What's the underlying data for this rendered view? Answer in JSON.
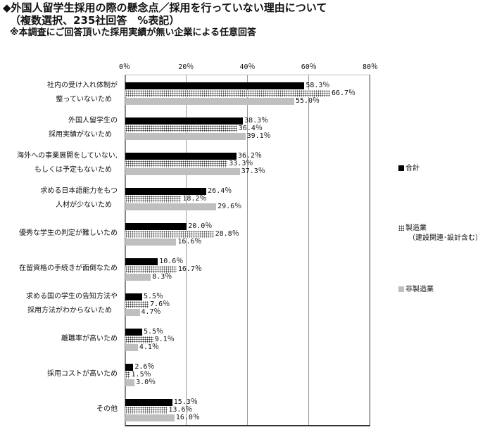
{
  "header": {
    "title": "◆外国人留学生採用の際の懸念点／採用を行っていない理由について",
    "subtitle": "（複数選択、235社回答　%表記）",
    "note": "※本調査にご回答頂いた採用実績が無い企業による任意回答"
  },
  "axis": {
    "ticks": [
      "0％",
      "20％",
      "40％",
      "60％",
      "80％"
    ]
  },
  "legend": {
    "total": "合計",
    "mfg": "製造業",
    "mfg_sub": "（建設関連･設計含む）",
    "nonmfg": "非製造業"
  },
  "categories": [
    {
      "line1": "社内の受け入れ体制が",
      "line2": "整っていないため",
      "total": "58.3％",
      "mfg": "66.7％",
      "nonmfg": "55.0％"
    },
    {
      "line1": "外国人留学生の",
      "line2": "採用実績がないため",
      "total": "38.3％",
      "mfg": "36.4％",
      "nonmfg": "39.1％"
    },
    {
      "line1": "海外への事業展開をしていない,",
      "line2": "もしくは予定もないため",
      "total": "36.2％",
      "mfg": "33.3％",
      "nonmfg": "37.3％"
    },
    {
      "line1": "求める日本語能力をもつ",
      "line2": "人材が少ないため",
      "total": "26.4％",
      "mfg": "18.2％",
      "nonmfg": "29.6％"
    },
    {
      "line1": "優秀な学生の判定が難しいため",
      "line2": "",
      "total": "20.0％",
      "mfg": "28.8％",
      "nonmfg": "16.6％"
    },
    {
      "line1": "在留資格の手続きが面倒なため",
      "line2": "",
      "total": "10.6％",
      "mfg": "16.7％",
      "nonmfg": "8.3％"
    },
    {
      "line1": "求める国の学生の告知方法や",
      "line2": "採用方法がわからないため",
      "total": "5.5％",
      "mfg": "7.6％",
      "nonmfg": "4.7％"
    },
    {
      "line1": "離職率が高いため",
      "line2": "",
      "total": "5.5％",
      "mfg": "9.1％",
      "nonmfg": "4.1％"
    },
    {
      "line1": "採用コストが高いため",
      "line2": "",
      "total": "2.6％",
      "mfg": "1.5％",
      "nonmfg": "3.0％"
    },
    {
      "line1": "その他",
      "line2": "",
      "total": "15.3％",
      "mfg": "13.6％",
      "nonmfg": "16.0％"
    }
  ],
  "chart_data": {
    "type": "bar",
    "orientation": "horizontal",
    "title": "◆外国人留学生採用の際の懸念点／採用を行っていない理由について（複数選択、235社回答　%表記）",
    "subtitle": "※本調査にご回答頂いた採用実績が無い企業による任意回答",
    "categories": [
      "社内の受け入れ体制が整っていないため",
      "外国人留学生の採用実績がないため",
      "海外への事業展開をしていない,もしくは予定もないため",
      "求める日本語能力をもつ人材が少ないため",
      "優秀な学生の判定が難しいため",
      "在留資格の手続きが面倒なため",
      "求める国の学生の告知方法や採用方法がわからないため",
      "離職率が高いため",
      "採用コストが高いため",
      "その他"
    ],
    "series": [
      {
        "name": "合計",
        "color": "#000000",
        "values": [
          58.3,
          38.3,
          36.2,
          26.4,
          20.0,
          10.6,
          5.5,
          5.5,
          2.6,
          15.3
        ]
      },
      {
        "name": "製造業（建設関連･設計含む）",
        "color": "dotted",
        "values": [
          66.7,
          36.4,
          33.3,
          18.2,
          28.8,
          16.7,
          7.6,
          9.1,
          1.5,
          13.6
        ]
      },
      {
        "name": "非製造業",
        "color": "#bfbfbf",
        "values": [
          55.0,
          39.1,
          37.3,
          29.6,
          16.6,
          8.3,
          4.7,
          4.1,
          3.0,
          16.0
        ]
      }
    ],
    "xlabel": "",
    "ylabel": "",
    "xlim": [
      0,
      80
    ],
    "xticks": [
      "0%",
      "20%",
      "40%",
      "60%",
      "80%"
    ],
    "grid": true,
    "legend_position": "right",
    "value_unit": "%"
  }
}
